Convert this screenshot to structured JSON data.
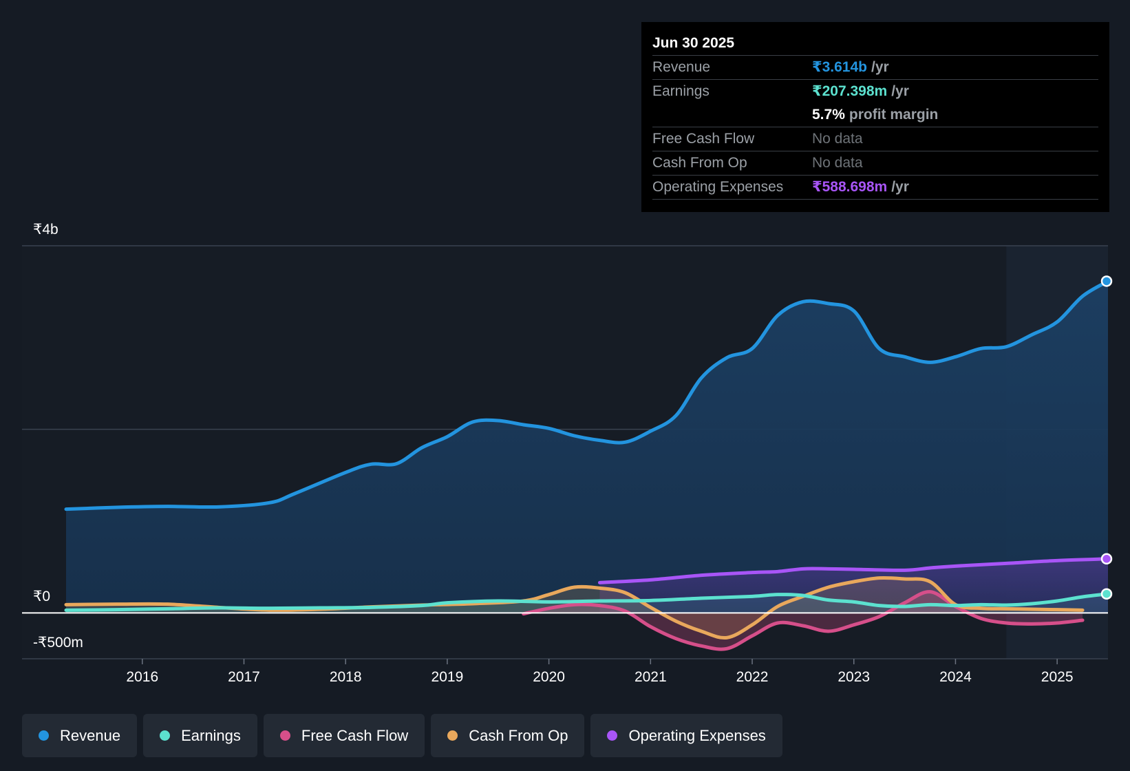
{
  "tooltip": {
    "date": "Jun 30 2025",
    "rows": [
      {
        "label": "Revenue",
        "value": "₹3.614b",
        "unit": "/yr",
        "color": "#2394df"
      },
      {
        "label": "Earnings",
        "value": "₹207.398m",
        "unit": "/yr",
        "color": "#5ce1cf"
      },
      {
        "label": "",
        "value": "5.7%",
        "unit": "profit margin",
        "color": "#ffffff"
      },
      {
        "label": "Free Cash Flow",
        "value": "No data",
        "unit": "",
        "color": ""
      },
      {
        "label": "Cash From Op",
        "value": "No data",
        "unit": "",
        "color": ""
      },
      {
        "label": "Operating Expenses",
        "value": "₹588.698m",
        "unit": "/yr",
        "color": "#a855f7"
      }
    ]
  },
  "legend": [
    {
      "label": "Revenue",
      "color": "#2394df"
    },
    {
      "label": "Earnings",
      "color": "#5ce1cf"
    },
    {
      "label": "Free Cash Flow",
      "color": "#d64f8a"
    },
    {
      "label": "Cash From Op",
      "color": "#e9a85c"
    },
    {
      "label": "Operating Expenses",
      "color": "#a855f7"
    }
  ],
  "chart_data": {
    "type": "area",
    "y_tick_labels": [
      "₹4b",
      "₹0",
      "-₹500m"
    ],
    "ylim": [
      -500,
      4000
    ],
    "y_unit": "₹m",
    "x_ticks": [
      2016,
      2017,
      2018,
      2019,
      2020,
      2021,
      2022,
      2023,
      2024,
      2025
    ],
    "xlim": [
      2015.25,
      2025.5
    ],
    "highlight_from": 2024.5,
    "series": [
      {
        "name": "Revenue",
        "color": "#2394df",
        "points": [
          [
            2015.25,
            1130
          ],
          [
            2015.75,
            1150
          ],
          [
            2016.25,
            1160
          ],
          [
            2016.75,
            1155
          ],
          [
            2017.25,
            1200
          ],
          [
            2017.5,
            1300
          ],
          [
            2018.0,
            1530
          ],
          [
            2018.25,
            1620
          ],
          [
            2018.5,
            1625
          ],
          [
            2018.75,
            1800
          ],
          [
            2019.0,
            1920
          ],
          [
            2019.25,
            2080
          ],
          [
            2019.5,
            2095
          ],
          [
            2019.75,
            2050
          ],
          [
            2020.0,
            2010
          ],
          [
            2020.25,
            1930
          ],
          [
            2020.5,
            1880
          ],
          [
            2020.75,
            1860
          ],
          [
            2021.0,
            1980
          ],
          [
            2021.25,
            2150
          ],
          [
            2021.5,
            2560
          ],
          [
            2021.75,
            2780
          ],
          [
            2022.0,
            2880
          ],
          [
            2022.25,
            3240
          ],
          [
            2022.5,
            3390
          ],
          [
            2022.75,
            3370
          ],
          [
            2023.0,
            3290
          ],
          [
            2023.25,
            2880
          ],
          [
            2023.5,
            2790
          ],
          [
            2023.75,
            2730
          ],
          [
            2024.0,
            2790
          ],
          [
            2024.25,
            2880
          ],
          [
            2024.5,
            2900
          ],
          [
            2024.75,
            3030
          ],
          [
            2025.0,
            3170
          ],
          [
            2025.25,
            3450
          ],
          [
            2025.5,
            3614
          ]
        ]
      },
      {
        "name": "Earnings",
        "color": "#5ce1cf",
        "points": [
          [
            2015.25,
            30
          ],
          [
            2015.75,
            35
          ],
          [
            2016.25,
            45
          ],
          [
            2016.75,
            55
          ],
          [
            2017.25,
            50
          ],
          [
            2017.75,
            55
          ],
          [
            2018.25,
            60
          ],
          [
            2018.75,
            80
          ],
          [
            2019.0,
            110
          ],
          [
            2019.5,
            130
          ],
          [
            2020.0,
            120
          ],
          [
            2020.5,
            130
          ],
          [
            2021.0,
            135
          ],
          [
            2021.5,
            160
          ],
          [
            2022.0,
            180
          ],
          [
            2022.25,
            200
          ],
          [
            2022.5,
            190
          ],
          [
            2022.75,
            140
          ],
          [
            2023.0,
            120
          ],
          [
            2023.25,
            80
          ],
          [
            2023.5,
            70
          ],
          [
            2023.75,
            90
          ],
          [
            2024.0,
            80
          ],
          [
            2024.25,
            90
          ],
          [
            2024.5,
            85
          ],
          [
            2024.75,
            100
          ],
          [
            2025.0,
            130
          ],
          [
            2025.25,
            175
          ],
          [
            2025.5,
            207
          ]
        ]
      },
      {
        "name": "Free Cash Flow",
        "color": "#d64f8a",
        "points": [
          [
            2019.75,
            -10
          ],
          [
            2020.0,
            50
          ],
          [
            2020.25,
            90
          ],
          [
            2020.5,
            80
          ],
          [
            2020.75,
            20
          ],
          [
            2021.0,
            -150
          ],
          [
            2021.25,
            -280
          ],
          [
            2021.5,
            -360
          ],
          [
            2021.75,
            -390
          ],
          [
            2022.0,
            -250
          ],
          [
            2022.25,
            -110
          ],
          [
            2022.5,
            -140
          ],
          [
            2022.75,
            -200
          ],
          [
            2023.0,
            -130
          ],
          [
            2023.25,
            -40
          ],
          [
            2023.5,
            110
          ],
          [
            2023.75,
            230
          ],
          [
            2024.0,
            70
          ],
          [
            2024.25,
            -60
          ],
          [
            2024.5,
            -110
          ],
          [
            2024.75,
            -120
          ],
          [
            2025.0,
            -110
          ],
          [
            2025.25,
            -80
          ]
        ]
      },
      {
        "name": "Cash From Op",
        "color": "#e9a85c",
        "points": [
          [
            2015.25,
            90
          ],
          [
            2015.75,
            95
          ],
          [
            2016.25,
            95
          ],
          [
            2016.75,
            60
          ],
          [
            2017.25,
            30
          ],
          [
            2017.75,
            40
          ],
          [
            2018.25,
            65
          ],
          [
            2018.75,
            85
          ],
          [
            2019.25,
            100
          ],
          [
            2019.75,
            130
          ],
          [
            2020.0,
            200
          ],
          [
            2020.25,
            280
          ],
          [
            2020.5,
            270
          ],
          [
            2020.75,
            220
          ],
          [
            2021.0,
            60
          ],
          [
            2021.25,
            -90
          ],
          [
            2021.5,
            -200
          ],
          [
            2021.75,
            -270
          ],
          [
            2022.0,
            -130
          ],
          [
            2022.25,
            70
          ],
          [
            2022.5,
            180
          ],
          [
            2022.75,
            280
          ],
          [
            2023.0,
            340
          ],
          [
            2023.25,
            380
          ],
          [
            2023.5,
            370
          ],
          [
            2023.75,
            340
          ],
          [
            2024.0,
            90
          ],
          [
            2024.25,
            50
          ],
          [
            2024.5,
            45
          ],
          [
            2024.75,
            40
          ],
          [
            2025.0,
            35
          ],
          [
            2025.25,
            30
          ]
        ]
      },
      {
        "name": "Operating Expenses",
        "color": "#a855f7",
        "points": [
          [
            2020.5,
            330
          ],
          [
            2021.0,
            360
          ],
          [
            2021.5,
            410
          ],
          [
            2022.0,
            440
          ],
          [
            2022.25,
            450
          ],
          [
            2022.5,
            480
          ],
          [
            2022.75,
            480
          ],
          [
            2023.0,
            475
          ],
          [
            2023.5,
            465
          ],
          [
            2023.75,
            490
          ],
          [
            2024.0,
            510
          ],
          [
            2024.5,
            540
          ],
          [
            2025.0,
            570
          ],
          [
            2025.5,
            589
          ]
        ]
      }
    ]
  }
}
